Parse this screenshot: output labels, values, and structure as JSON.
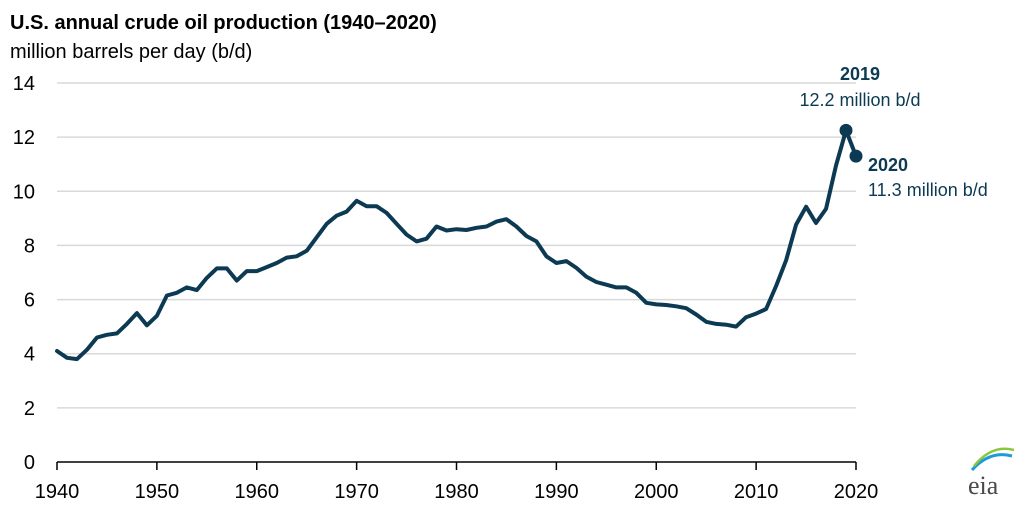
{
  "colors": {
    "line": "#0c3a52",
    "grid": "#d9d9d9",
    "axis": "#000000",
    "logo_arc_1": "#1b9bd7",
    "logo_arc_2": "#8cc63f"
  },
  "logo": {
    "text": "eia",
    "icon": "eia-logo-icon"
  },
  "chart_data": {
    "type": "line",
    "title": "U.S. annual crude oil production (1940–2020)",
    "ylabel": "million barrels per day (b/d)",
    "xlim": [
      1940,
      2020
    ],
    "ylim": [
      0,
      14
    ],
    "xticks": [
      1940,
      1950,
      1960,
      1970,
      1980,
      1990,
      2000,
      2010,
      2020
    ],
    "yticks": [
      0,
      2,
      4,
      6,
      8,
      10,
      12,
      14
    ],
    "grid": "horizontal",
    "series": [
      {
        "x": [
          1940,
          1941,
          1942,
          1943,
          1944,
          1945,
          1946,
          1947,
          1948,
          1949,
          1950,
          1951,
          1952,
          1953,
          1954,
          1955,
          1956,
          1957,
          1958,
          1959,
          1960,
          1961,
          1962,
          1963,
          1964,
          1965,
          1966,
          1967,
          1968,
          1969,
          1970,
          1971,
          1972,
          1973,
          1974,
          1975,
          1976,
          1977,
          1978,
          1979,
          1980,
          1981,
          1982,
          1983,
          1984,
          1985,
          1986,
          1987,
          1988,
          1989,
          1990,
          1991,
          1992,
          1993,
          1994,
          1995,
          1996,
          1997,
          1998,
          1999,
          2000,
          2001,
          2002,
          2003,
          2004,
          2005,
          2006,
          2007,
          2008,
          2009,
          2010,
          2011,
          2012,
          2013,
          2014,
          2015,
          2016,
          2017,
          2018,
          2019,
          2020
        ],
        "values": [
          4.1,
          3.85,
          3.8,
          4.15,
          4.6,
          4.7,
          4.75,
          5.1,
          5.5,
          5.05,
          5.4,
          6.15,
          6.25,
          6.45,
          6.35,
          6.8,
          7.15,
          7.15,
          6.7,
          7.05,
          7.05,
          7.2,
          7.35,
          7.55,
          7.6,
          7.8,
          8.3,
          8.8,
          9.1,
          9.25,
          9.65,
          9.45,
          9.45,
          9.2,
          8.8,
          8.4,
          8.15,
          8.25,
          8.7,
          8.55,
          8.6,
          8.57,
          8.65,
          8.7,
          8.88,
          8.97,
          8.7,
          8.35,
          8.15,
          7.6,
          7.35,
          7.42,
          7.17,
          6.85,
          6.65,
          6.55,
          6.45,
          6.45,
          6.25,
          5.88,
          5.82,
          5.8,
          5.75,
          5.68,
          5.45,
          5.18,
          5.1,
          5.07,
          5.0,
          5.35,
          5.48,
          5.65,
          6.5,
          7.45,
          8.77,
          9.43,
          8.83,
          9.35,
          10.95,
          12.25,
          11.3
        ]
      }
    ],
    "annotations": [
      {
        "year": "2019",
        "text": "12.2 million b/d",
        "x": 2019,
        "y": 12.25,
        "year_color": "#0c3a52",
        "text_color": "#0c3a52"
      },
      {
        "year": "2020",
        "text": "11.3 million b/d",
        "x": 2020,
        "y": 11.3,
        "year_color": "#0c3a52",
        "text_color": "#0c3a52"
      }
    ]
  }
}
